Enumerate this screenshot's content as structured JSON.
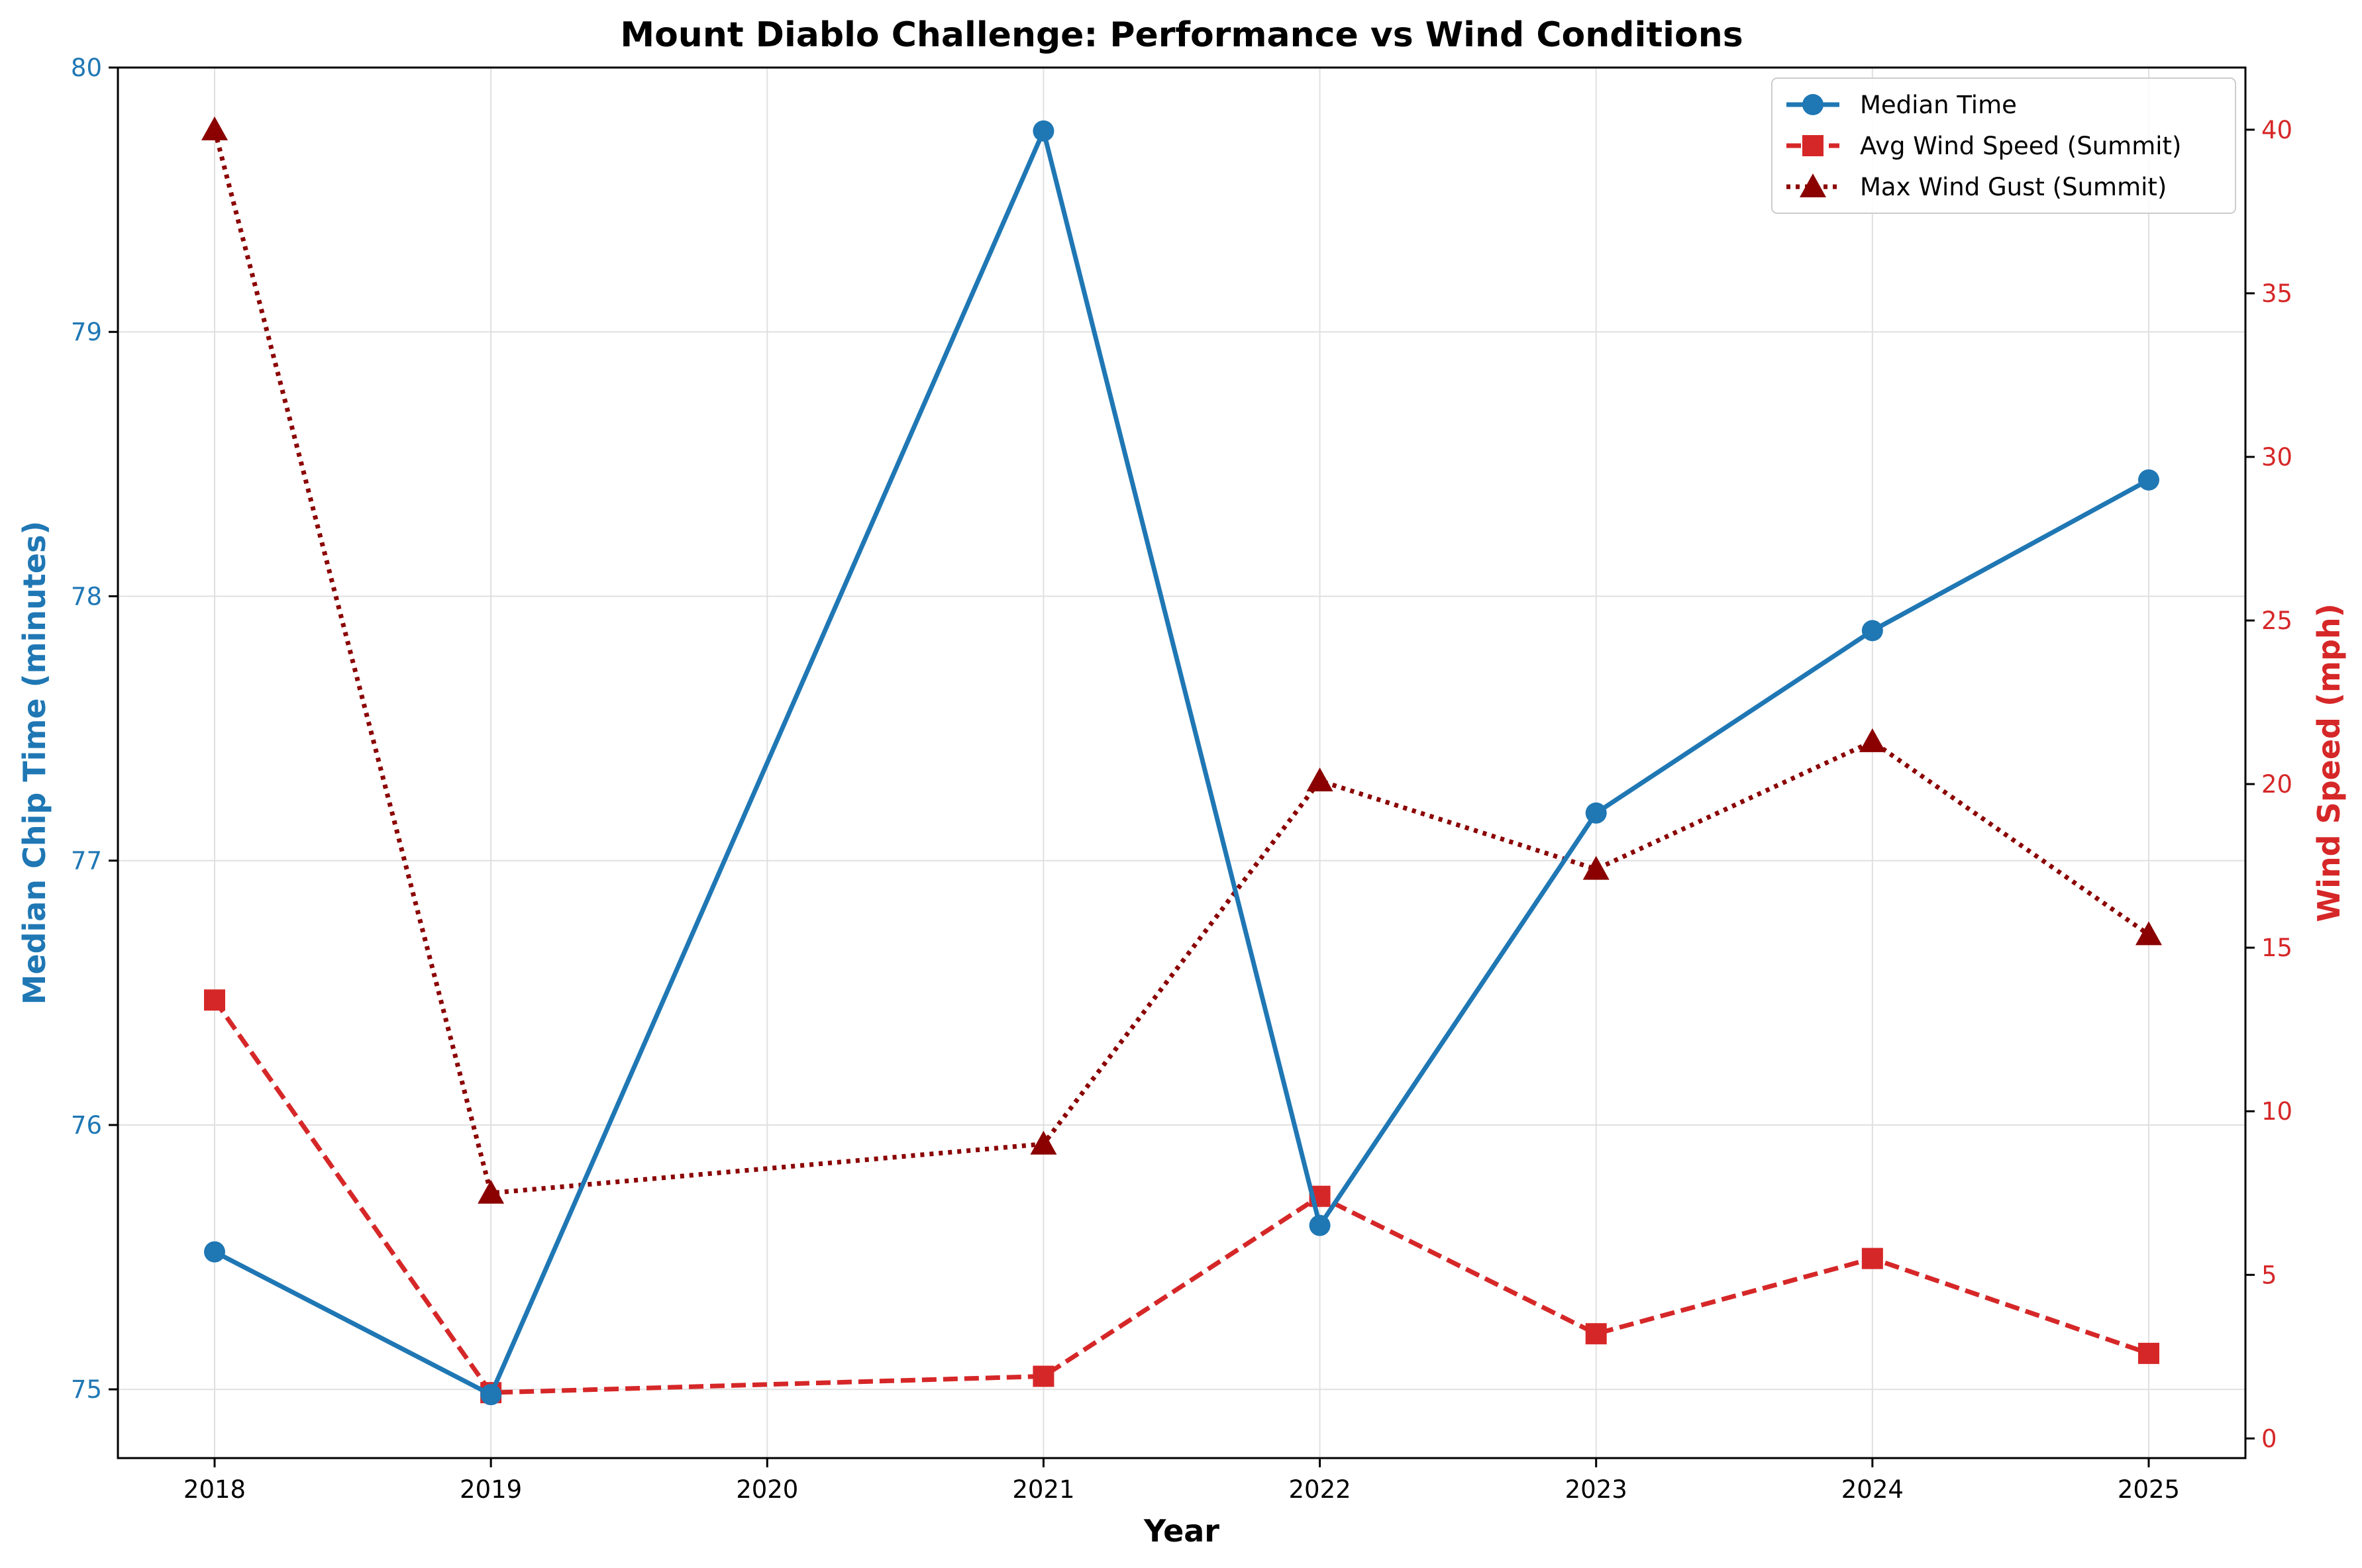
{
  "chart_data": {
    "type": "line",
    "title": "Mount Diablo Challenge: Performance vs Wind Conditions",
    "xlabel": "Year",
    "ylabel_left": "Median Chip Time (minutes)",
    "ylabel_right": "Wind Speed (mph)",
    "x": [
      2018,
      2019,
      2021,
      2022,
      2023,
      2024,
      2025
    ],
    "x_ticks": [
      "2018",
      "2019",
      "2020",
      "2021",
      "2022",
      "2023",
      "2024",
      "2025"
    ],
    "xlim": [
      2017.65,
      2025.35
    ],
    "y_left_ticks": [
      "75",
      "76",
      "77",
      "78",
      "79",
      "80"
    ],
    "ylim_left": [
      74.74,
      80.0
    ],
    "y_right_ticks": [
      "0",
      "5",
      "10",
      "15",
      "20",
      "25",
      "30",
      "35",
      "40"
    ],
    "ylim_right": [
      -0.6,
      41.9
    ],
    "grid": true,
    "legend_position": "top-right",
    "colors": {
      "median_time": "#1f77b4",
      "avg_wind": "#d62728",
      "max_gust": "#8b0000",
      "left_axis_text": "#1f77b4",
      "right_axis_text": "#d62728",
      "grid": "#e0e0e0"
    },
    "series": [
      {
        "name": "Median Time",
        "axis": "left",
        "marker": "circle",
        "line_style": "solid",
        "color": "#1f77b4",
        "values": [
          75.52,
          74.98,
          79.76,
          75.62,
          77.18,
          77.87,
          78.44
        ]
      },
      {
        "name": "Avg Wind Speed (Summit)",
        "axis": "right",
        "marker": "square",
        "line_style": "dashed",
        "color": "#d62728",
        "values": [
          13.4,
          1.4,
          1.9,
          7.4,
          3.2,
          5.5,
          2.6
        ]
      },
      {
        "name": "Max Wind Gust (Summit)",
        "axis": "right",
        "marker": "triangle",
        "line_style": "dotted",
        "color": "#8b0000",
        "values": [
          40.0,
          7.5,
          9.0,
          20.1,
          17.4,
          21.3,
          15.4
        ]
      }
    ]
  }
}
